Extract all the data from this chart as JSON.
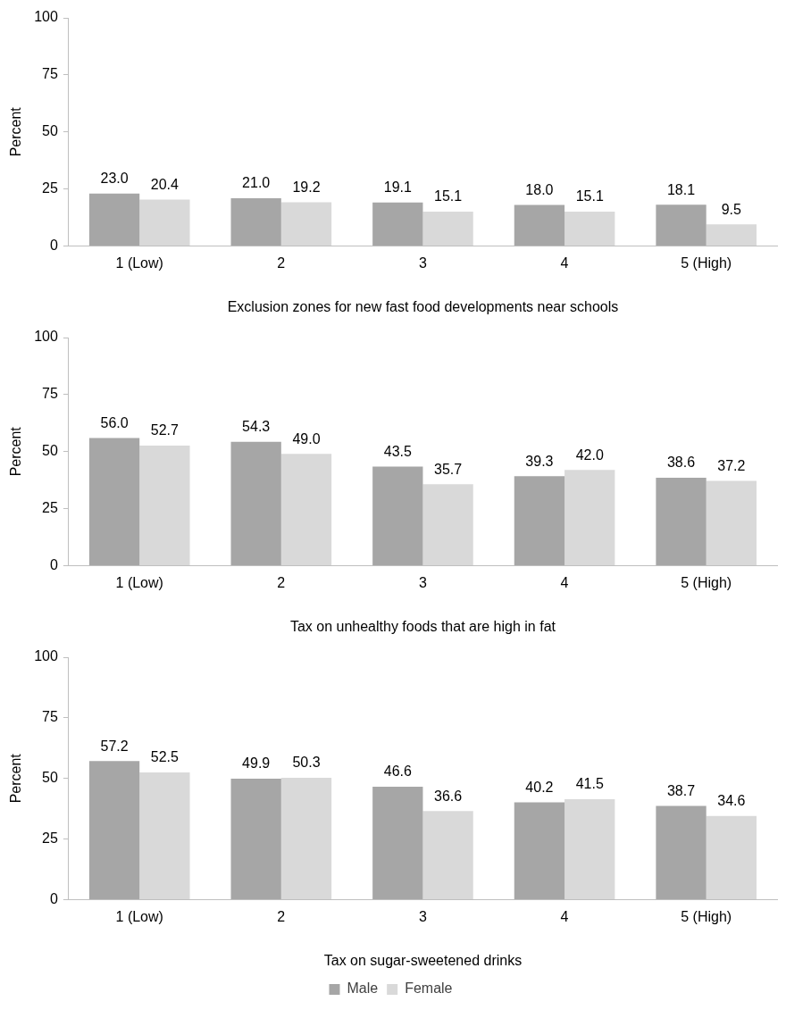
{
  "chart_data": [
    {
      "type": "bar",
      "xlabel": "Exclusion zones for new fast food developments near schools",
      "ylabel": "Percent",
      "categories": [
        "1 (Low)",
        "2",
        "3",
        "4",
        "5 (High)"
      ],
      "series": [
        {
          "color": "#a6a6a6",
          "values": [
            23.0,
            21.0,
            19.1,
            18.0,
            18.1
          ],
          "value_labels": [
            "23.0",
            "21.0",
            "19.1",
            "18.0",
            "18.1"
          ]
        },
        {
          "color": "#d9d9d9",
          "values": [
            20.4,
            19.2,
            15.1,
            15.1,
            9.5
          ],
          "value_labels": [
            "20.4",
            "19.2",
            "15.1",
            "15.1",
            "9.5"
          ]
        }
      ],
      "ylim": [
        0,
        100
      ],
      "yticks": [
        0,
        25,
        50,
        75,
        100
      ]
    },
    {
      "type": "bar",
      "xlabel": "Tax on unhealthy foods that are high in fat",
      "ylabel": "Percent",
      "categories": [
        "1 (Low)",
        "2",
        "3",
        "4",
        "5 (High)"
      ],
      "series": [
        {
          "color": "#a6a6a6",
          "values": [
            56.0,
            54.3,
            43.5,
            39.3,
            38.6
          ],
          "value_labels": [
            "56.0",
            "54.3",
            "43.5",
            "39.3",
            "38.6"
          ]
        },
        {
          "color": "#d9d9d9",
          "values": [
            52.7,
            49.0,
            35.7,
            42.0,
            37.2
          ],
          "value_labels": [
            "52.7",
            "49.0",
            "35.7",
            "42.0",
            "37.2"
          ]
        }
      ],
      "ylim": [
        0,
        100
      ],
      "yticks": [
        0,
        25,
        50,
        75,
        100
      ]
    },
    {
      "type": "bar",
      "xlabel": "Tax on sugar-sweetened drinks",
      "ylabel": "Percent",
      "categories": [
        "1 (Low)",
        "2",
        "3",
        "4",
        "5 (High)"
      ],
      "series": [
        {
          "name": "Male",
          "color": "#a6a6a6",
          "values": [
            57.2,
            49.9,
            46.6,
            40.2,
            38.7
          ],
          "value_labels": [
            "57.2",
            "49.9",
            "46.6",
            "40.2",
            "38.7"
          ]
        },
        {
          "name": "Female",
          "color": "#d9d9d9",
          "values": [
            52.5,
            50.3,
            36.6,
            41.5,
            34.6
          ],
          "value_labels": [
            "52.5",
            "50.3",
            "36.6",
            "41.5",
            "34.6"
          ]
        }
      ],
      "ylim": [
        0,
        100
      ],
      "yticks": [
        0,
        25,
        50,
        75,
        100
      ],
      "legend": "bottom"
    }
  ]
}
